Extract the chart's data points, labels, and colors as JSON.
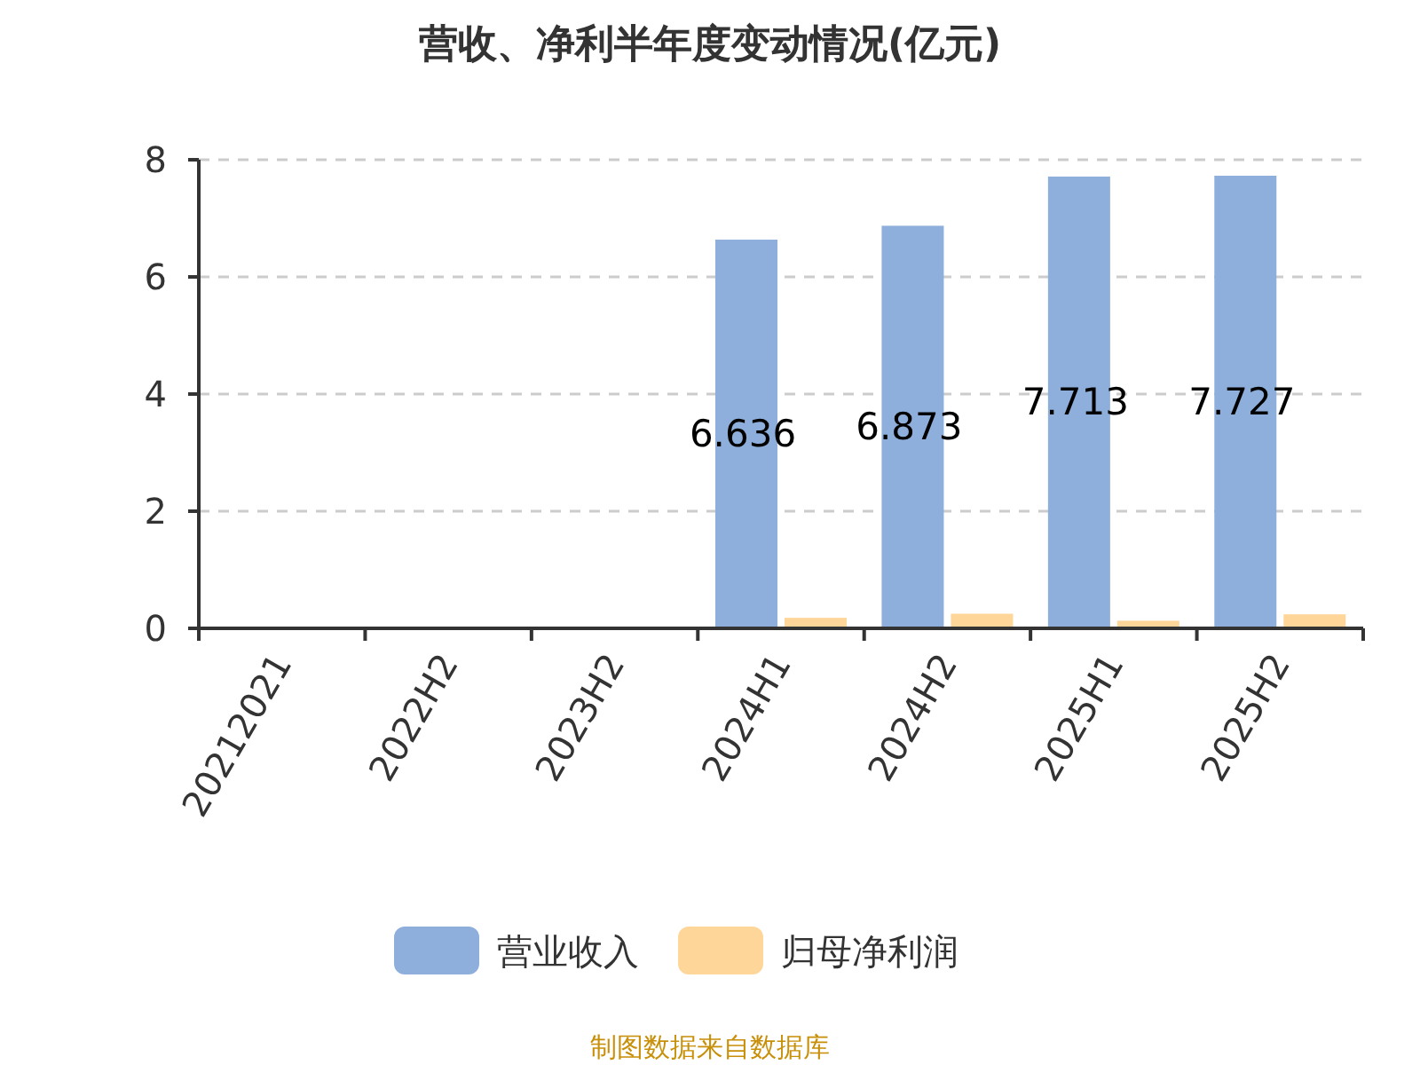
{
  "chart_data": {
    "type": "bar",
    "title": "营收、净利半年度变动情况(亿元)",
    "categories": [
      "20212021",
      "2022H2",
      "2023H2",
      "2024H1",
      "2024H2",
      "2025H1",
      "2025H2"
    ],
    "series": [
      {
        "name": "营业收入",
        "color": "#8eaedb",
        "values": [
          null,
          null,
          null,
          6.636,
          6.873,
          7.713,
          7.727
        ],
        "value_labels": [
          null,
          null,
          null,
          "6.636",
          "6.873",
          "7.713",
          "7.727"
        ]
      },
      {
        "name": "归母净利润",
        "color": "#ffd699",
        "values": [
          null,
          null,
          null,
          0.18,
          0.25,
          0.13,
          0.24
        ]
      }
    ],
    "ylim": [
      0,
      8
    ],
    "yticks": [
      0,
      2,
      4,
      6,
      8
    ],
    "grid": "y",
    "legend": "bottom",
    "annotations": [
      "制图数据来自数据库"
    ]
  }
}
